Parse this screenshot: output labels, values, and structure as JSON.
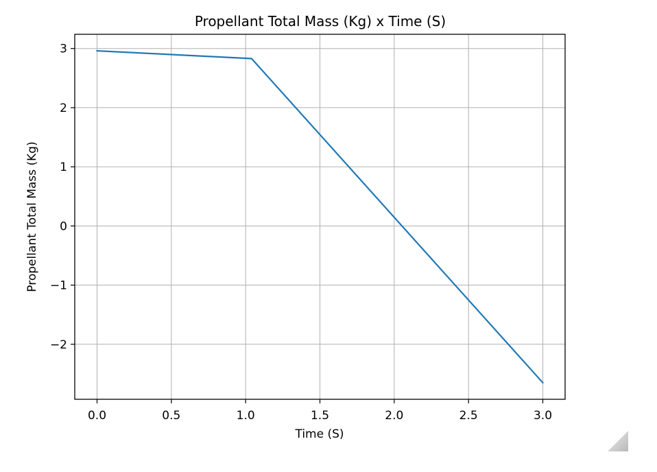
{
  "chart_data": {
    "type": "line",
    "title": "Propellant Total Mass (Kg) x Time (S)",
    "xlabel": "Time (S)",
    "ylabel": "Propellant Total Mass (Kg)",
    "xlim": [
      -0.15,
      3.15
    ],
    "ylim": [
      -2.93,
      3.24
    ],
    "grid": true,
    "xticks": [
      0.0,
      0.5,
      1.0,
      1.5,
      2.0,
      2.5,
      3.0
    ],
    "xtick_labels": [
      "0.0",
      "0.5",
      "1.0",
      "1.5",
      "2.0",
      "2.5",
      "3.0"
    ],
    "yticks": [
      3,
      2,
      1,
      0,
      -1,
      -2
    ],
    "ytick_labels": [
      "3",
      "2",
      "1",
      "0",
      "−1",
      "−2"
    ],
    "series": [
      {
        "name": "Propellant Total Mass",
        "color": "#1f77b4",
        "x": [
          0.0,
          1.04,
          3.0
        ],
        "y": [
          2.96,
          2.83,
          -2.65
        ]
      }
    ]
  },
  "window": {
    "resize_grip_icon": "resize-grip-icon"
  }
}
